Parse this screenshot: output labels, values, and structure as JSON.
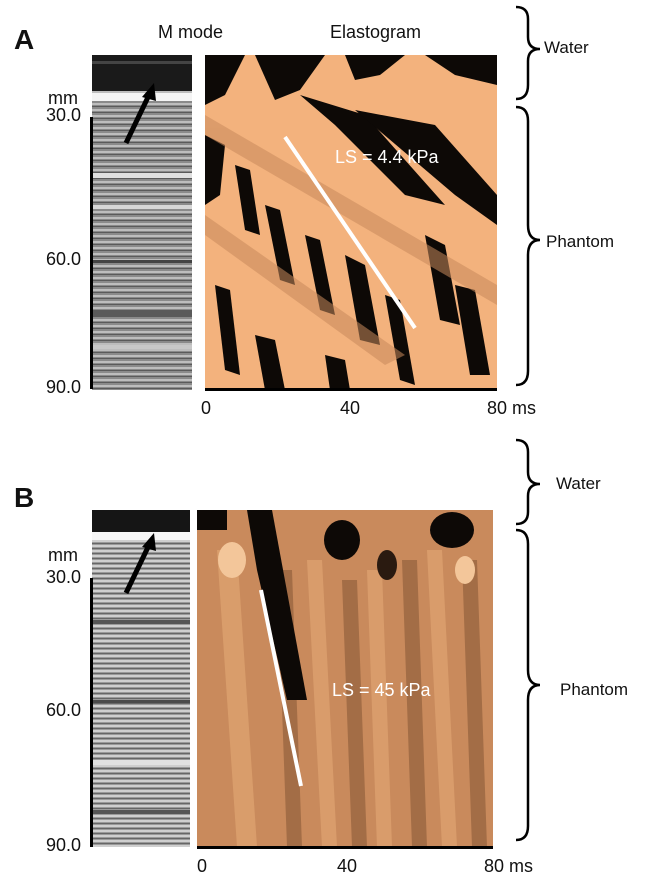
{
  "header": {
    "mmode_title": "M mode",
    "elastogram_title": "Elastogram"
  },
  "panels": [
    {
      "letter": "A",
      "unit": "mm",
      "depth_ticks": [
        "30.0",
        "60.0",
        "90.0"
      ],
      "time_ticks": [
        "0",
        "40",
        "80 ms"
      ],
      "annotation": "LS = 4.4 kPa",
      "regions": [
        "Water",
        "Phantom"
      ]
    },
    {
      "letter": "B",
      "unit": "mm",
      "depth_ticks": [
        "30.0",
        "60.0",
        "90.0"
      ],
      "time_ticks": [
        "0",
        "40",
        "80 ms"
      ],
      "annotation": "LS = 45 kPa",
      "regions": [
        "Water",
        "Phantom"
      ]
    }
  ],
  "colors": {
    "elastogram_light": "#f3b27d",
    "elastogram_mid": "#c98a5c",
    "elastogram_dark": "#0d0906",
    "mmode_light": "#e6e6e6",
    "mmode_dark": "#3a3a3a",
    "fit_line": "#ffffff"
  }
}
